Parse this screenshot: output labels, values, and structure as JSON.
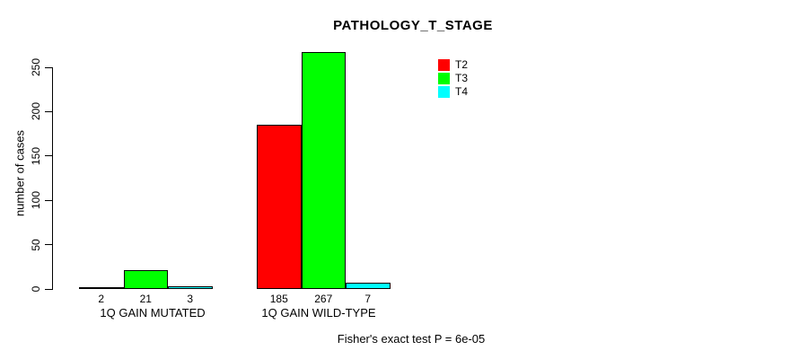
{
  "chart_data": {
    "type": "bar",
    "title": "PATHOLOGY_T_STAGE",
    "ylabel": "number of cases",
    "xlabel": "",
    "categories": [
      "1Q GAIN MUTATED",
      "1Q GAIN WILD-TYPE"
    ],
    "series": [
      {
        "name": "T2",
        "color": "#ff0000",
        "values": [
          2,
          185
        ]
      },
      {
        "name": "T3",
        "color": "#00ff00",
        "values": [
          21,
          267
        ]
      },
      {
        "name": "T4",
        "color": "#00ffff",
        "values": [
          3,
          7
        ]
      }
    ],
    "yticks": [
      0,
      50,
      100,
      150,
      200,
      250
    ],
    "ylim": [
      0,
      270
    ],
    "grid": false,
    "legend_position": "top-right",
    "annotation": "Fisher's exact test P = 6e-05"
  }
}
